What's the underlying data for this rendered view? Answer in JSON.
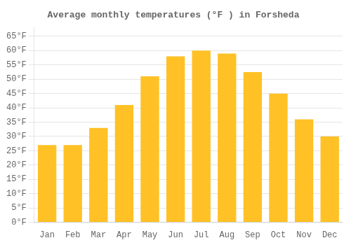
{
  "chart_data": {
    "type": "bar",
    "title": "Average monthly temperatures (°F ) in Forsheda",
    "categories": [
      "Jan",
      "Feb",
      "Mar",
      "Apr",
      "May",
      "Jun",
      "Jul",
      "Aug",
      "Sep",
      "Oct",
      "Nov",
      "Dec"
    ],
    "values": [
      27,
      27,
      33,
      41,
      51,
      58,
      60,
      59,
      52.5,
      45,
      36,
      30
    ],
    "color": "#FFC125",
    "ylim": [
      0,
      68
    ],
    "yticks": [
      {
        "value": 0,
        "label": "0°F"
      },
      {
        "value": 5,
        "label": "5°F"
      },
      {
        "value": 10,
        "label": "10°F"
      },
      {
        "value": 15,
        "label": "15°F"
      },
      {
        "value": 20,
        "label": "20°F"
      },
      {
        "value": 25,
        "label": "25°F"
      },
      {
        "value": 30,
        "label": "30°F"
      },
      {
        "value": 35,
        "label": "35°F"
      },
      {
        "value": 40,
        "label": "40°F"
      },
      {
        "value": 45,
        "label": "45°F"
      },
      {
        "value": 50,
        "label": "50°F"
      },
      {
        "value": 55,
        "label": "55°F"
      },
      {
        "value": 60,
        "label": "60°F"
      },
      {
        "value": 65,
        "label": "65°F"
      }
    ],
    "grid": true
  }
}
